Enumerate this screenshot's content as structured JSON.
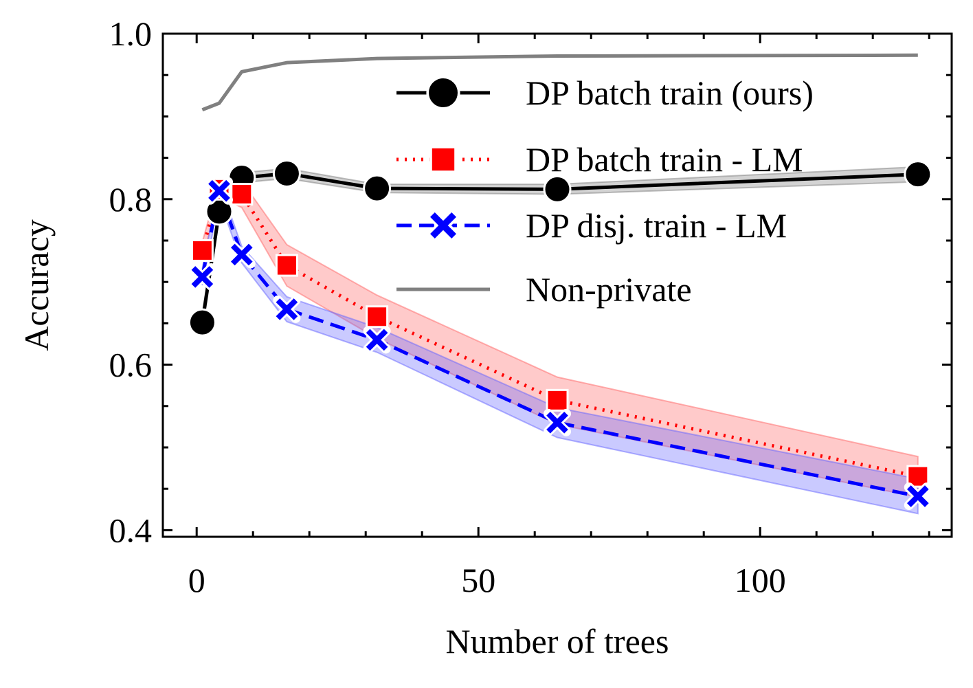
{
  "chart_data": {
    "type": "line",
    "title": "",
    "xlabel": "Number of trees",
    "ylabel": "Accuracy",
    "xlim": [
      -6,
      134
    ],
    "ylim": [
      0.392,
      1.0
    ],
    "xticks": [
      0,
      50,
      100
    ],
    "xtick_labels": [
      "0",
      "50",
      "100"
    ],
    "yticks": [
      0.4,
      0.6,
      0.8,
      1.0
    ],
    "ytick_labels": [
      "0.4",
      "0.6",
      "0.8",
      "1.0"
    ],
    "x_minor_step": 10,
    "y_minor_step": 0.05,
    "grid": false,
    "legend_position": "upper-right",
    "series": [
      {
        "name": "DP batch train (ours)",
        "color": "#000000",
        "line_style": "solid",
        "marker": "circle",
        "x": [
          1,
          4,
          8,
          16,
          32,
          64,
          128
        ],
        "y": [
          0.651,
          0.785,
          0.826,
          0.831,
          0.813,
          0.812,
          0.83
        ],
        "band_lower": [
          0.64,
          0.778,
          0.82,
          0.825,
          0.808,
          0.806,
          0.821
        ],
        "band_upper": [
          0.662,
          0.792,
          0.832,
          0.837,
          0.818,
          0.818,
          0.839
        ],
        "band_color": "#808080"
      },
      {
        "name": "DP batch train - LM",
        "color": "#ff0000",
        "line_style": "dotted",
        "marker": "square",
        "x": [
          1,
          4,
          8,
          16,
          32,
          64,
          128
        ],
        "y": [
          0.738,
          0.812,
          0.806,
          0.72,
          0.658,
          0.557,
          0.465
        ],
        "band_lower": [
          0.728,
          0.802,
          0.79,
          0.695,
          0.632,
          0.528,
          0.44
        ],
        "band_upper": [
          0.748,
          0.822,
          0.822,
          0.745,
          0.684,
          0.585,
          0.489
        ],
        "band_color": "#ff6666"
      },
      {
        "name": "DP disj. train - LM",
        "color": "#0000ff",
        "line_style": "dashed",
        "marker": "x",
        "x": [
          1,
          4,
          8,
          16,
          32,
          64,
          128
        ],
        "y": [
          0.706,
          0.81,
          0.733,
          0.667,
          0.63,
          0.53,
          0.441
        ],
        "band_lower": [
          0.696,
          0.8,
          0.723,
          0.652,
          0.615,
          0.512,
          0.42
        ],
        "band_upper": [
          0.716,
          0.82,
          0.743,
          0.682,
          0.645,
          0.548,
          0.462
        ],
        "band_color": "#6666ff"
      },
      {
        "name": "Non-private",
        "color": "#808080",
        "line_style": "solid",
        "marker": "none",
        "x": [
          1,
          4,
          8,
          16,
          32,
          64,
          128
        ],
        "y": [
          0.908,
          0.916,
          0.954,
          0.965,
          0.97,
          0.973,
          0.974
        ]
      }
    ]
  }
}
